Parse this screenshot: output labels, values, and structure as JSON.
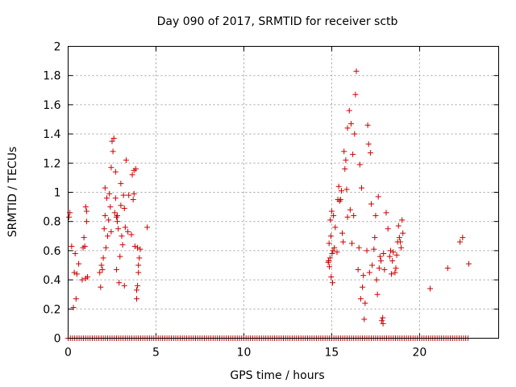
{
  "chart_data": {
    "type": "scatter",
    "title": "Day 090 of 2017, SRMTID for receiver sctb",
    "xlabel": "GPS time / hours",
    "ylabel": "SRMTID / TECUs",
    "xlim": [
      0,
      24.5
    ],
    "ylim": [
      0,
      2
    ],
    "xticks": [
      0,
      5,
      10,
      15,
      20
    ],
    "yticks": [
      0,
      0.2,
      0.4,
      0.6,
      0.8,
      1,
      1.2,
      1.4,
      1.6,
      1.8,
      2
    ],
    "xtick_labels": [
      "0",
      "5",
      "10",
      "15",
      "20"
    ],
    "ytick_labels": [
      "0",
      "0.2",
      "0.4",
      "0.6",
      "0.8",
      "1",
      "1.2",
      "1.4",
      "1.6",
      "1.8",
      "2"
    ],
    "grid": true,
    "marker": "+",
    "color": "#cc0000",
    "series": [
      {
        "name": "SRMTID",
        "baseline": {
          "x_start": 0,
          "x_end": 22.8,
          "x_step": 0.125,
          "y": 0
        },
        "points": [
          [
            0.05,
            0.83
          ],
          [
            0.1,
            0.86
          ],
          [
            0.2,
            0.63
          ],
          [
            0.3,
            0.21
          ],
          [
            0.35,
            0.45
          ],
          [
            0.4,
            0.58
          ],
          [
            0.45,
            0.27
          ],
          [
            0.5,
            0.44
          ],
          [
            0.6,
            0.51
          ],
          [
            0.8,
            0.4
          ],
          [
            0.85,
            0.62
          ],
          [
            0.9,
            0.69
          ],
          [
            0.95,
            0.63
          ],
          [
            1.0,
            0.9
          ],
          [
            1.05,
            0.87
          ],
          [
            1.05,
            0.8
          ],
          [
            1.1,
            0.42
          ],
          [
            1.0,
            0.41
          ],
          [
            1.8,
            0.45
          ],
          [
            1.85,
            0.35
          ],
          [
            1.9,
            0.5
          ],
          [
            1.95,
            0.47
          ],
          [
            2.0,
            0.55
          ],
          [
            2.05,
            0.75
          ],
          [
            2.1,
            0.84
          ],
          [
            2.1,
            1.03
          ],
          [
            2.15,
            0.62
          ],
          [
            2.2,
            0.96
          ],
          [
            2.25,
            0.7
          ],
          [
            2.3,
            0.81
          ],
          [
            2.35,
            0.99
          ],
          [
            2.4,
            0.9
          ],
          [
            2.45,
            0.73
          ],
          [
            2.45,
            1.17
          ],
          [
            2.5,
            1.35
          ],
          [
            2.55,
            1.28
          ],
          [
            2.6,
            1.37
          ],
          [
            2.65,
            0.86
          ],
          [
            2.7,
            0.96
          ],
          [
            2.7,
            1.14
          ],
          [
            2.75,
            0.83
          ],
          [
            2.75,
            0.47
          ],
          [
            2.8,
            0.84
          ],
          [
            2.8,
            0.8
          ],
          [
            2.85,
            0.75
          ],
          [
            2.9,
            0.38
          ],
          [
            2.95,
            0.56
          ],
          [
            3.0,
            0.91
          ],
          [
            3.0,
            1.06
          ],
          [
            3.05,
            0.7
          ],
          [
            3.1,
            0.64
          ],
          [
            3.15,
            0.98
          ],
          [
            3.2,
            0.36
          ],
          [
            3.2,
            0.89
          ],
          [
            3.25,
            0.76
          ],
          [
            3.3,
            1.22
          ],
          [
            3.4,
            0.73
          ],
          [
            3.45,
            0.98
          ],
          [
            3.6,
            0.71
          ],
          [
            3.65,
            1.12
          ],
          [
            3.7,
            0.95
          ],
          [
            3.75,
            0.99
          ],
          [
            3.75,
            1.15
          ],
          [
            3.8,
            0.63
          ],
          [
            3.85,
            1.16
          ],
          [
            3.9,
            0.27
          ],
          [
            3.9,
            0.33
          ],
          [
            3.95,
            0.36
          ],
          [
            3.95,
            0.62
          ],
          [
            4.0,
            0.5
          ],
          [
            4.0,
            0.45
          ],
          [
            4.05,
            0.55
          ],
          [
            4.1,
            0.61
          ],
          [
            4.5,
            0.76
          ],
          [
            14.8,
            0.52
          ],
          [
            14.82,
            0.53
          ],
          [
            14.85,
            0.65
          ],
          [
            14.87,
            0.49
          ],
          [
            14.9,
            0.55
          ],
          [
            14.92,
            0.81
          ],
          [
            14.95,
            0.7
          ],
          [
            14.97,
            0.42
          ],
          [
            15.0,
            0.87
          ],
          [
            15.02,
            0.58
          ],
          [
            15.05,
            0.38
          ],
          [
            15.07,
            0.6
          ],
          [
            15.1,
            0.84
          ],
          [
            15.15,
            0.62
          ],
          [
            15.2,
            0.76
          ],
          [
            15.3,
            0.59
          ],
          [
            15.35,
            0.95
          ],
          [
            15.4,
            1.04
          ],
          [
            15.45,
            0.94
          ],
          [
            15.5,
            0.95
          ],
          [
            15.55,
            1.01
          ],
          [
            15.6,
            0.72
          ],
          [
            15.65,
            0.66
          ],
          [
            15.7,
            1.28
          ],
          [
            15.75,
            1.16
          ],
          [
            15.8,
            1.22
          ],
          [
            15.85,
            1.02
          ],
          [
            15.9,
            0.83
          ],
          [
            15.9,
            1.44
          ],
          [
            16.0,
            1.56
          ],
          [
            16.05,
            0.88
          ],
          [
            16.1,
            1.47
          ],
          [
            16.15,
            0.65
          ],
          [
            16.2,
            1.26
          ],
          [
            16.25,
            0.84
          ],
          [
            16.3,
            1.4
          ],
          [
            16.35,
            1.67
          ],
          [
            16.4,
            1.83
          ],
          [
            16.5,
            0.47
          ],
          [
            16.55,
            0.62
          ],
          [
            16.6,
            1.19
          ],
          [
            16.65,
            0.27
          ],
          [
            16.7,
            1.03
          ],
          [
            16.75,
            0.35
          ],
          [
            16.8,
            0.43
          ],
          [
            16.85,
            0.13
          ],
          [
            16.9,
            0.24
          ],
          [
            17.0,
            0.6
          ],
          [
            17.05,
            1.46
          ],
          [
            17.1,
            1.33
          ],
          [
            17.15,
            0.45
          ],
          [
            17.2,
            1.27
          ],
          [
            17.25,
            0.92
          ],
          [
            17.3,
            0.5
          ],
          [
            17.4,
            0.61
          ],
          [
            17.45,
            0.69
          ],
          [
            17.5,
            0.84
          ],
          [
            17.55,
            0.4
          ],
          [
            17.6,
            0.3
          ],
          [
            17.65,
            0.97
          ],
          [
            17.7,
            0.48
          ],
          [
            17.75,
            0.56
          ],
          [
            17.8,
            0.53
          ],
          [
            17.85,
            0.12
          ],
          [
            17.9,
            0.14
          ],
          [
            17.92,
            0.1
          ],
          [
            17.95,
            0.58
          ],
          [
            18.0,
            0.47
          ],
          [
            18.1,
            0.86
          ],
          [
            18.2,
            0.75
          ],
          [
            18.3,
            0.56
          ],
          [
            18.35,
            0.6
          ],
          [
            18.4,
            0.44
          ],
          [
            18.45,
            0.53
          ],
          [
            18.5,
            0.59
          ],
          [
            18.6,
            0.45
          ],
          [
            18.65,
            0.48
          ],
          [
            18.7,
            0.57
          ],
          [
            18.75,
            0.66
          ],
          [
            18.8,
            0.77
          ],
          [
            18.85,
            0.69
          ],
          [
            18.9,
            0.66
          ],
          [
            18.95,
            0.62
          ],
          [
            19.0,
            0.81
          ],
          [
            19.05,
            0.72
          ],
          [
            20.6,
            0.34
          ],
          [
            21.6,
            0.48
          ],
          [
            22.3,
            0.66
          ],
          [
            22.45,
            0.69
          ],
          [
            22.8,
            0.51
          ]
        ]
      }
    ]
  }
}
